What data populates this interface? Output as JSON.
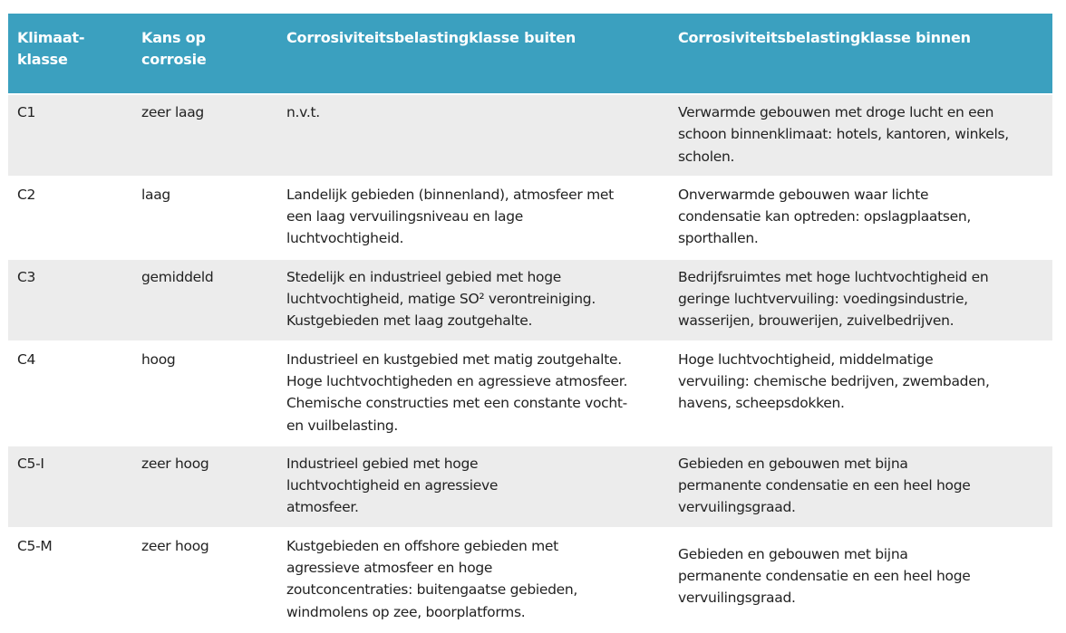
{
  "headers": [
    "Klimaat-\nklasse",
    "Kans op\ncorrosie",
    "Corrosiviteitsbelastingklasse buiten",
    "Corrosiviteitsbelastingklasse binnen"
  ],
  "colors": {
    "header_bg": "#3ba0bf",
    "header_text": "#ffffff",
    "row_alt": "#ececec"
  },
  "rows": [
    {
      "klasse": "C1",
      "kans": "zeer laag",
      "buiten": "n.v.t.",
      "binnen": "Verwarmde gebouwen met droge lucht en een\nschoon binnenklimaat: hotels, kantoren, winkels,\nscholen."
    },
    {
      "klasse": "C2",
      "kans": "laag",
      "buiten": "Landelijk gebieden (binnenland), atmosfeer met\neen laag vervuilingsniveau en lage\nluchtvochtigheid.",
      "binnen": "Onverwarmde gebouwen waar lichte\ncondensatie kan optreden: opslagplaatsen,\nsporthallen."
    },
    {
      "klasse": "C3",
      "kans": "gemiddeld",
      "buiten": "Stedelijk en industrieel gebied met hoge\nluchtvochtigheid, matige SO² verontreiniging.\nKustgebieden met laag zoutgehalte.",
      "binnen": "Bedrijfsruimtes met hoge luchtvochtigheid en\ngeringe luchtvervuiling:  voedingsindustrie,\nwasserijen, brouwerijen, zuivelbedrijven."
    },
    {
      "klasse": "C4",
      "kans": "hoog",
      "buiten": "Industrieel en kustgebied met matig zoutgehalte.\nHoge luchtvochtigheden en agressieve atmosfeer.\nChemische constructies met een constante vocht-\nen vuilbelasting.",
      "binnen": "Hoge luchtvochtigheid, middelmatige\nvervuiling: chemische bedrijven, zwembaden,\nhavens, scheepsdokken."
    },
    {
      "klasse": "C5-I",
      "kans": "zeer hoog",
      "buiten": "Industrieel gebied met hoge\nluchtvochtigheid en agressieve\natmosfeer.",
      "binnen": "Gebieden en gebouwen met bijna\npermanente condensatie en een heel hoge\nvervuilingsgraad."
    },
    {
      "klasse": "C5-M",
      "kans": "zeer hoog",
      "buiten": "Kustgebieden en offshore gebieden met\nagressieve atmosfeer en hoge\nzoutconcentraties: buitengaatse gebieden,\nwindmolens op zee, boorplatforms.",
      "binnen": "Gebieden en gebouwen met bijna\npermanente condensatie en een heel hoge\nvervuilingsgraad."
    }
  ]
}
